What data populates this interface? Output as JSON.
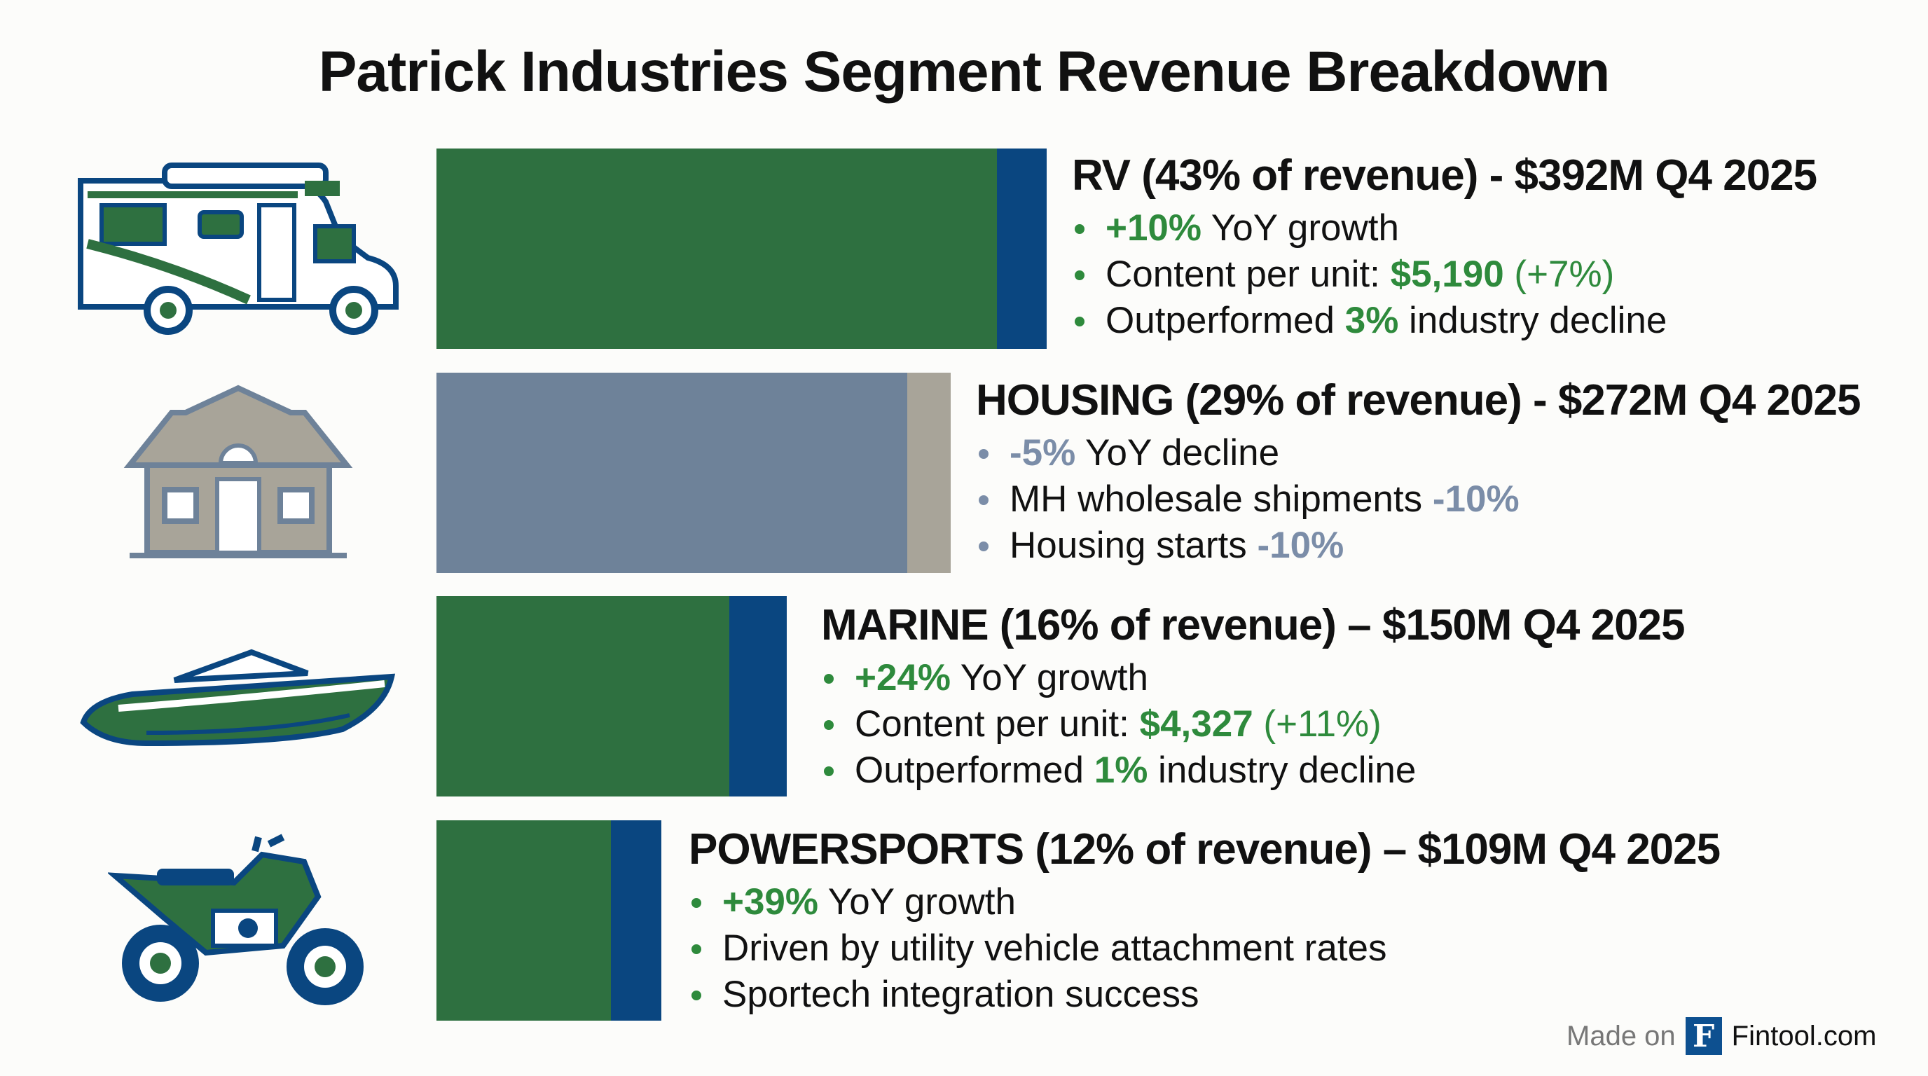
{
  "title": "Patrick Industries Segment Revenue Breakdown",
  "colors": {
    "green": "#2e7040",
    "blue": "#0a4680",
    "slate": "#6e8299",
    "gray": "#a8a499",
    "green_text": "#2e8a3c",
    "slate_text": "#7b8da8"
  },
  "chart_data": {
    "type": "bar",
    "orientation": "horizontal",
    "categories": [
      "RV",
      "HOUSING",
      "MARINE",
      "POWERSPORTS"
    ],
    "values_percent_of_revenue": [
      43,
      29,
      16,
      12
    ],
    "values_revenue_musd_q4_2025": [
      392,
      272,
      150,
      109
    ],
    "title": "Patrick Industries Segment Revenue Breakdown"
  },
  "segments": [
    {
      "icon": "rv-icon",
      "heading": "RV (43% of revenue) - $392M Q4 2025",
      "b1": {
        "hl": "+10%",
        "t": " YoY growth"
      },
      "b2": {
        "t": "Content per unit: ",
        "hl": "$5,190",
        "t2": " (+7%)"
      },
      "b3": {
        "t": "Outperformed ",
        "hl": "3%",
        "t2": " industry decline"
      }
    },
    {
      "icon": "house-icon",
      "heading": "HOUSING (29% of revenue) - $272M Q4 2025",
      "b1": {
        "hl": "-5%",
        "t": " YoY decline"
      },
      "b2": {
        "t": "MH wholesale shipments ",
        "hl": "-10%"
      },
      "b3": {
        "t": "Housing starts ",
        "hl": "-10%"
      }
    },
    {
      "icon": "boat-icon",
      "heading": "MARINE (16% of revenue) – $150M Q4 2025",
      "b1": {
        "hl": "+24%",
        "t": " YoY growth"
      },
      "b2": {
        "t": "Content per unit: ",
        "hl": "$4,327",
        "t2": " (+11%)"
      },
      "b3": {
        "t": "Outperformed ",
        "hl": "1%",
        "t2": " industry decline"
      }
    },
    {
      "icon": "atv-icon",
      "heading": "POWERSPORTS (12% of revenue) – $109M Q4 2025",
      "b1": {
        "hl": "+39%",
        "t": " YoY growth"
      },
      "b2": {
        "t": "Driven by utility vehicle attachment rates"
      },
      "b3": {
        "t": "Sportech integration success"
      }
    }
  ],
  "footer": {
    "made_on": "Made on",
    "logo_letter": "F",
    "brand": "Fintool.com"
  }
}
